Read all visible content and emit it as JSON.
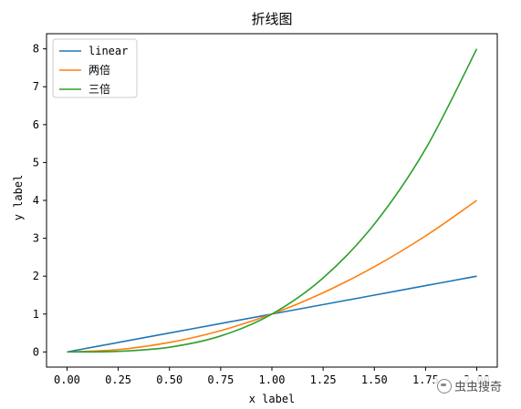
{
  "chart_data": {
    "type": "line",
    "title": "折线图",
    "xlabel": "x label",
    "ylabel": "y label",
    "xlim": [
      -0.1,
      2.1
    ],
    "ylim": [
      -0.4,
      8.4
    ],
    "x_ticks": [
      "0.00",
      "0.25",
      "0.50",
      "0.75",
      "1.00",
      "1.25",
      "1.50",
      "1.75",
      "2.00"
    ],
    "y_ticks": [
      "0",
      "1",
      "2",
      "3",
      "4",
      "5",
      "6",
      "7",
      "8"
    ],
    "legend_position": "upper-left",
    "grid": false,
    "series": [
      {
        "name": "linear",
        "color": "#1f77b4",
        "x": [
          0,
          0.25,
          0.5,
          0.75,
          1.0,
          1.25,
          1.5,
          1.75,
          2.0
        ],
        "y": [
          0,
          0.25,
          0.5,
          0.75,
          1.0,
          1.25,
          1.5,
          1.75,
          2.0
        ]
      },
      {
        "name": "两倍",
        "color": "#ff7f0e",
        "x": [
          0,
          0.25,
          0.5,
          0.75,
          1.0,
          1.25,
          1.5,
          1.75,
          2.0
        ],
        "y": [
          0,
          0.0625,
          0.25,
          0.5625,
          1.0,
          1.5625,
          2.25,
          3.0625,
          4.0
        ]
      },
      {
        "name": "三倍",
        "color": "#2ca02c",
        "x": [
          0,
          0.25,
          0.5,
          0.75,
          1.0,
          1.25,
          1.5,
          1.75,
          2.0
        ],
        "y": [
          0,
          0.015625,
          0.125,
          0.421875,
          1.0,
          1.953125,
          3.375,
          5.359375,
          8.0
        ]
      }
    ]
  },
  "watermark": {
    "text": "虫虫搜奇",
    "icon": "wechat-icon"
  }
}
